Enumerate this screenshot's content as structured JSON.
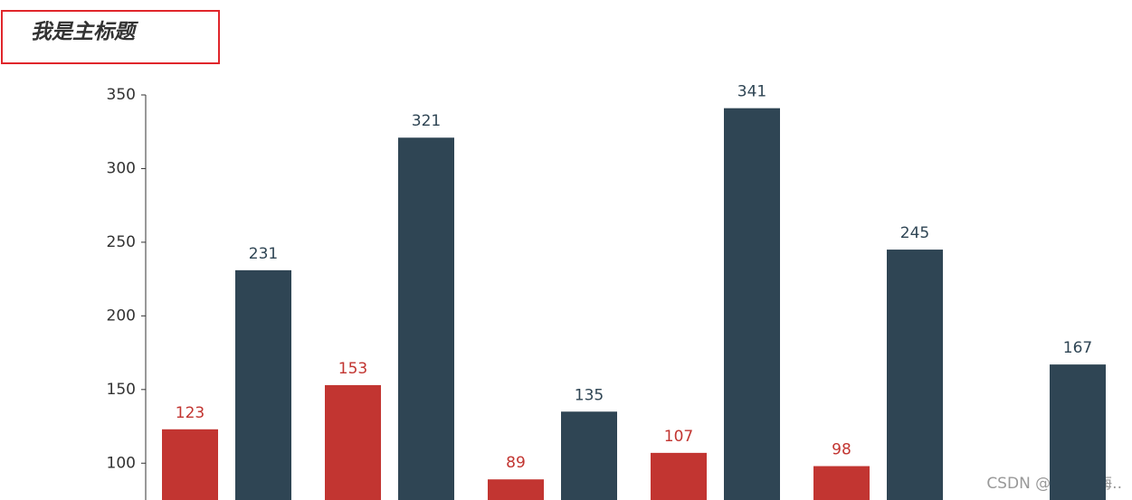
{
  "chart_data": {
    "type": "bar",
    "title": "我是主标题",
    "categories": [
      null,
      null,
      null,
      null,
      null,
      null
    ],
    "series": [
      {
        "color": "#c23531",
        "values": [
          123,
          153,
          89,
          107,
          98,
          null
        ]
      },
      {
        "color": "#2f4554",
        "values": [
          231,
          321,
          135,
          341,
          245,
          167
        ]
      }
    ],
    "ylim": [
      75,
      350
    ],
    "yticks": [
      100,
      150,
      200,
      250,
      300,
      350
    ],
    "grid": false
  },
  "watermark": "CSDN @想去看海.."
}
